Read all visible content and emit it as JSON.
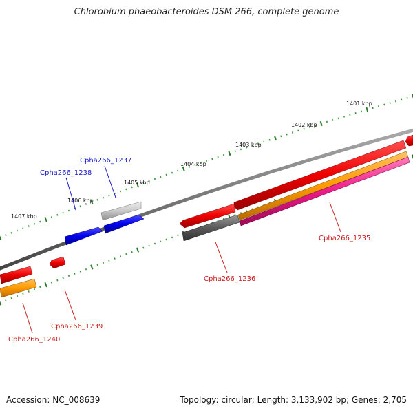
{
  "title": "Chlorobium phaeobacteroides DSM 266, complete genome",
  "footer": {
    "accession": "Accession: NC_008639",
    "summary": "Topology: circular; Length: 3,133,902 bp; Genes: 2,705"
  },
  "colors": {
    "backbone": "#7a7a7a",
    "tick_major": "#2a7a2a",
    "tick_minor": "#3a9a3a",
    "label_forward": "#1a1acc",
    "label_reverse": "#cc1a1a"
  },
  "kbp_labels": [
    "1401 kbp",
    "1402 kbp",
    "1403 kbp",
    "1404 kbp",
    "1405 kbp",
    "1406 kbp",
    "1407 kbp"
  ],
  "gene_labels": {
    "g1235": "Cpha266_1235",
    "g1236": "Cpha266_1236",
    "g1237": "Cpha266_1237",
    "g1238": "Cpha266_1238",
    "g1239": "Cpha266_1239",
    "g1240": "Cpha266_1240"
  }
}
